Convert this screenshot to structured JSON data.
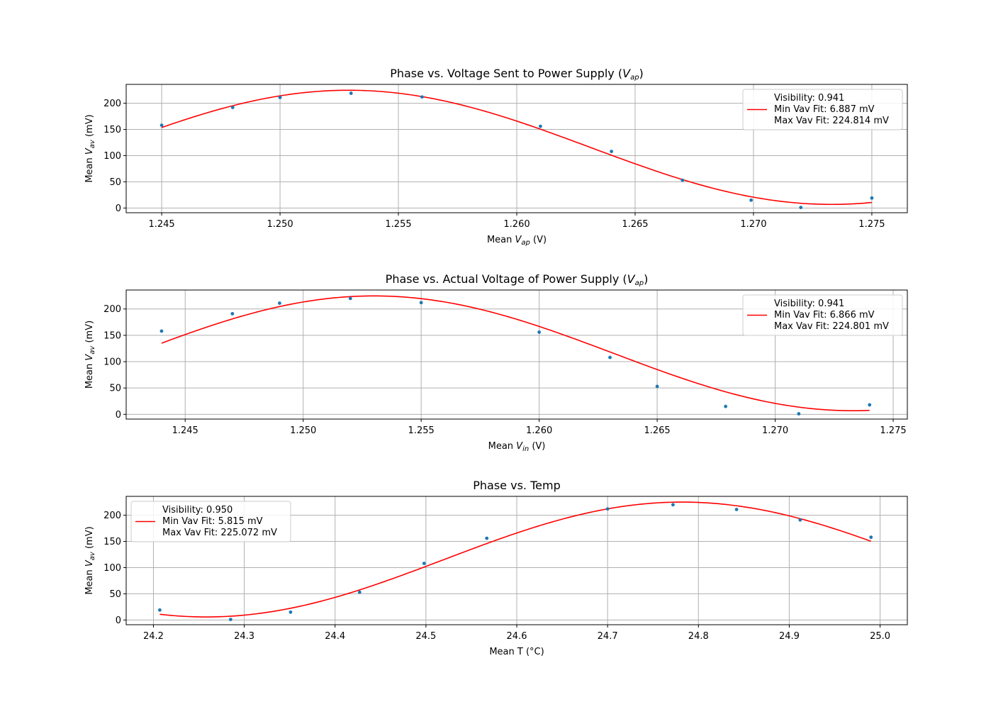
{
  "colors": {
    "points": "#1f77b4",
    "fit": "#ff0000",
    "grid": "#b0b0b0",
    "axes": "#000000",
    "legend_border": "#cccccc"
  },
  "chart_data": [
    {
      "type": "scatter",
      "title": "Phase vs. Voltage Sent to Power Supply (",
      "title_var": "V",
      "title_sub": "ap",
      "title_tail": ")",
      "xlabel": "Mean ",
      "xlabel_var": "V",
      "xlabel_sub": "ap",
      "xlabel_tail": " (V)",
      "ylabel": "Mean ",
      "ylabel_var": "V",
      "ylabel_sub": "av",
      "ylabel_tail": " (mV)",
      "xlim": [
        1.2435,
        1.2765
      ],
      "ylim": [
        -9,
        236
      ],
      "xticks": [
        1.245,
        1.25,
        1.255,
        1.26,
        1.265,
        1.27,
        1.275
      ],
      "xtick_labels": [
        "1.245",
        "1.250",
        "1.255",
        "1.260",
        "1.265",
        "1.270",
        "1.275"
      ],
      "yticks": [
        0,
        50,
        100,
        150,
        200
      ],
      "ytick_labels": [
        "0",
        "50",
        "100",
        "150",
        "200"
      ],
      "grid": true,
      "legend_placement": "upper right",
      "legend": [
        "Visibility: 0.941",
        "Min Vav Fit: 6.887 mV",
        "Max Vav Fit: 224.814 mV"
      ],
      "points": [
        [
          1.245,
          158
        ],
        [
          1.248,
          192
        ],
        [
          1.25,
          211
        ],
        [
          1.253,
          219
        ],
        [
          1.256,
          212
        ],
        [
          1.261,
          156
        ],
        [
          1.264,
          108
        ],
        [
          1.267,
          53
        ],
        [
          1.2699,
          15
        ],
        [
          1.272,
          1
        ],
        [
          1.275,
          19
        ]
      ],
      "fit": {
        "model": "sinusoid",
        "x_range": [
          1.245,
          1.275
        ],
        "min": 6.887,
        "max": 224.814,
        "x_at_max": 1.2529,
        "x_at_min": 1.2733
      }
    },
    {
      "type": "scatter",
      "title": "Phase vs. Actual Voltage of Power Supply (",
      "title_var": "V",
      "title_sub": "ap",
      "title_tail": ")",
      "xlabel": "Mean ",
      "xlabel_var": "V",
      "xlabel_sub": "in",
      "xlabel_tail": " (V)",
      "ylabel": "Mean ",
      "ylabel_var": "V",
      "ylabel_sub": "av",
      "ylabel_tail": " (mV)",
      "xlim": [
        1.2425,
        1.2756
      ],
      "ylim": [
        -9,
        236
      ],
      "xticks": [
        1.245,
        1.25,
        1.255,
        1.26,
        1.265,
        1.27,
        1.275
      ],
      "xtick_labels": [
        "1.245",
        "1.250",
        "1.255",
        "1.260",
        "1.265",
        "1.270",
        "1.275"
      ],
      "yticks": [
        0,
        50,
        100,
        150,
        200
      ],
      "ytick_labels": [
        "0",
        "50",
        "100",
        "150",
        "200"
      ],
      "grid": true,
      "legend_placement": "upper right",
      "legend": [
        "Visibility: 0.941",
        "Min Vav Fit: 6.866 mV",
        "Max Vav Fit: 224.801 mV"
      ],
      "points": [
        [
          1.244,
          158
        ],
        [
          1.247,
          191
        ],
        [
          1.249,
          211
        ],
        [
          1.252,
          220
        ],
        [
          1.255,
          212
        ],
        [
          1.26,
          156
        ],
        [
          1.263,
          108
        ],
        [
          1.265,
          53
        ],
        [
          1.2679,
          15
        ],
        [
          1.271,
          1
        ],
        [
          1.274,
          18
        ]
      ],
      "fit": {
        "model": "sinusoid",
        "x_range": [
          1.244,
          1.274
        ],
        "min": 6.866,
        "max": 224.801,
        "x_at_max": 1.253,
        "x_at_min": 1.2733
      }
    },
    {
      "type": "scatter",
      "title": "Phase vs. Temp",
      "title_var": "",
      "title_sub": "",
      "title_tail": "",
      "xlabel": "Mean T (°C)",
      "xlabel_var": "",
      "xlabel_sub": "",
      "xlabel_tail": "",
      "ylabel": "Mean ",
      "ylabel_var": "V",
      "ylabel_sub": "av",
      "ylabel_tail": " (mV)",
      "xlim": [
        24.17,
        25.03
      ],
      "ylim": [
        -9,
        236
      ],
      "xticks": [
        24.2,
        24.3,
        24.4,
        24.5,
        24.6,
        24.7,
        24.8,
        24.9,
        25.0
      ],
      "xtick_labels": [
        "24.2",
        "24.3",
        "24.4",
        "24.5",
        "24.6",
        "24.7",
        "24.8",
        "24.9",
        "25.0"
      ],
      "yticks": [
        0,
        50,
        100,
        150,
        200
      ],
      "ytick_labels": [
        "0",
        "50",
        "100",
        "150",
        "200"
      ],
      "grid": true,
      "legend_placement": "upper left",
      "legend": [
        "Visibility: 0.950",
        "Min Vav Fit: 5.815 mV",
        "Max Vav Fit: 225.072 mV"
      ],
      "points": [
        [
          24.207,
          19
        ],
        [
          24.285,
          1
        ],
        [
          24.351,
          15
        ],
        [
          24.427,
          53
        ],
        [
          24.498,
          108
        ],
        [
          24.567,
          156
        ],
        [
          24.7,
          212
        ],
        [
          24.772,
          220
        ],
        [
          24.842,
          211
        ],
        [
          24.912,
          191
        ],
        [
          24.99,
          158
        ]
      ],
      "fit": {
        "model": "sinusoid",
        "x_range": [
          24.207,
          24.99
        ],
        "min": 5.815,
        "max": 225.072,
        "x_at_max": 24.782,
        "x_at_min": 24.258
      }
    }
  ]
}
